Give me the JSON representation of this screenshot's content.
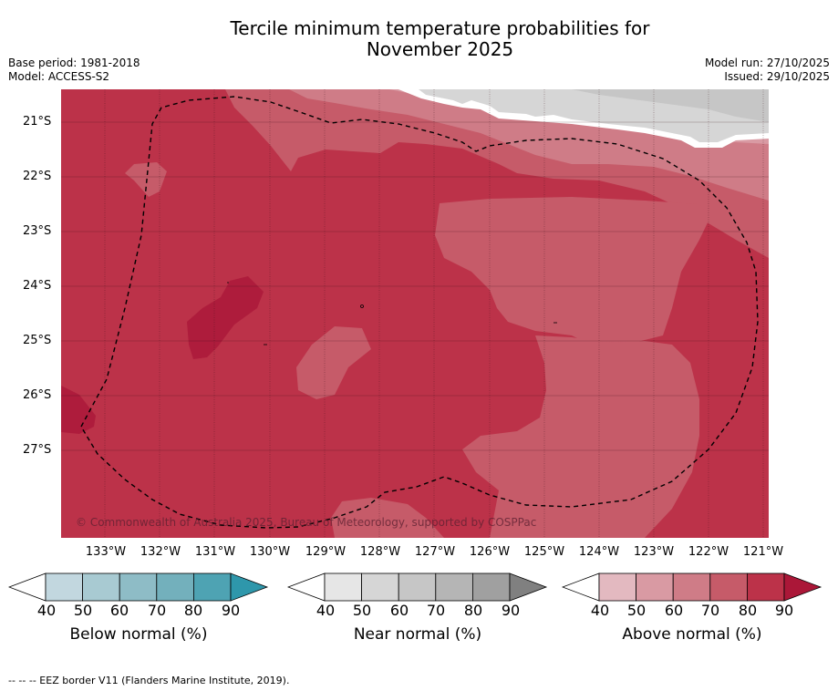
{
  "title_line1": "Tercile minimum temperature probabilities for",
  "title_line2": "November 2025",
  "base_period": "Base period: 1981-2018",
  "model": "Model: ACCESS-S2",
  "model_run": "Model run: 27/10/2025",
  "issued": "Issued: 29/10/2025",
  "copyright": "© Commonwealth of Australia 2025, Bureau of Meteorology, supported by COSPPac",
  "lat_labels": [
    "21°S",
    "22°S",
    "23°S",
    "24°S",
    "25°S",
    "26°S",
    "27°S"
  ],
  "lon_labels": [
    "133°W",
    "132°W",
    "131°W",
    "130°W",
    "129°W",
    "128°W",
    "127°W",
    "126°W",
    "125°W",
    "124°W",
    "123°W",
    "122°W",
    "121°W"
  ],
  "colorbars": [
    {
      "title": "Below normal (%)",
      "ticks": [
        "40",
        "50",
        "60",
        "70",
        "80",
        "90"
      ],
      "colors": [
        "#ffffff",
        "#c2d7df",
        "#a8cad2",
        "#8ebcc6",
        "#73b0bc",
        "#4ea3b3",
        "#2e97ab"
      ]
    },
    {
      "title": "Near normal (%)",
      "ticks": [
        "40",
        "50",
        "60",
        "70",
        "80",
        "90"
      ],
      "colors": [
        "#ffffff",
        "#e6e6e6",
        "#d6d6d6",
        "#c6c6c6",
        "#b5b5b5",
        "#a0a0a0",
        "#808080"
      ]
    },
    {
      "title": "Above normal (%)",
      "ticks": [
        "40",
        "50",
        "60",
        "70",
        "80",
        "90"
      ],
      "colors": [
        "#ffffff",
        "#e3b9c0",
        "#d99aa3",
        "#cf7c87",
        "#c65b69",
        "#bc3249",
        "#ab1738"
      ]
    }
  ],
  "map_colors": {
    "above_80": "#bc3249",
    "above_90": "#ae1c3c",
    "above_70": "#c65b69",
    "above_60": "#cf7c87",
    "above_50": "#d99aa3",
    "near_50": "#d6d6d6",
    "near_60": "#c6c6c6"
  },
  "footnote": "--  --  -- EEZ border V11 (Flanders Marine Institute, 2019)."
}
